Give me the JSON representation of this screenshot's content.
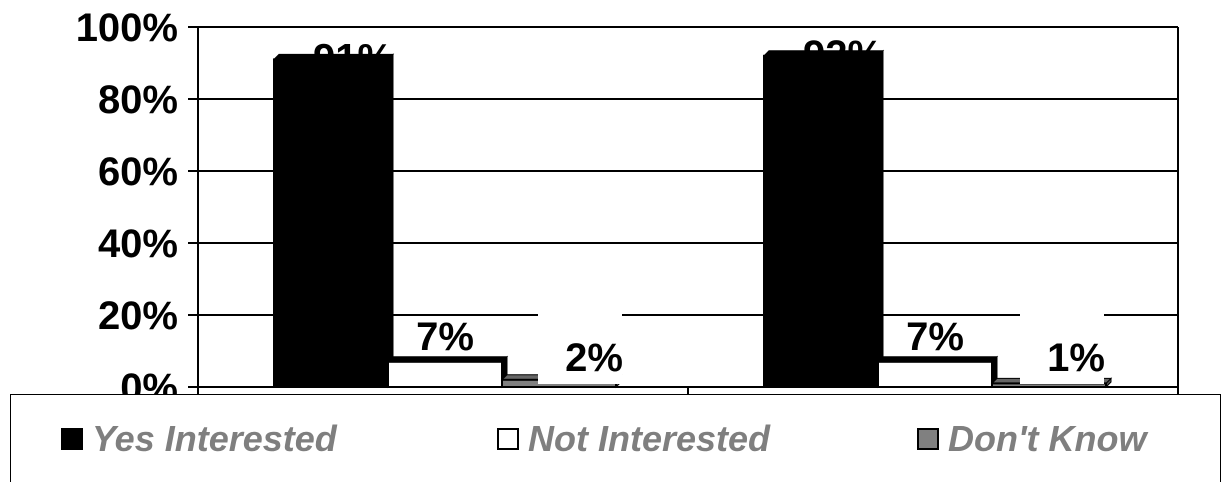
{
  "chart_data": {
    "type": "bar",
    "title": "",
    "xlabel": "",
    "ylabel": "",
    "ylim": [
      0,
      100
    ],
    "yticks": [
      "0%",
      "20%",
      "40%",
      "60%",
      "80%",
      "100%"
    ],
    "categories": [
      "",
      ""
    ],
    "series": [
      {
        "name": "Yes Interested",
        "color": "#000000",
        "values": [
          91,
          92
        ],
        "labels": [
          "91%",
          "92%"
        ]
      },
      {
        "name": "Not Interested",
        "color": "#ffffff",
        "values": [
          7,
          7
        ],
        "labels": [
          "7%",
          "7%"
        ]
      },
      {
        "name": "Don't Know",
        "color": "#808080",
        "values": [
          2,
          1
        ],
        "labels": [
          "2%",
          "1%"
        ]
      }
    ],
    "grid": true,
    "legend_position": "bottom"
  }
}
